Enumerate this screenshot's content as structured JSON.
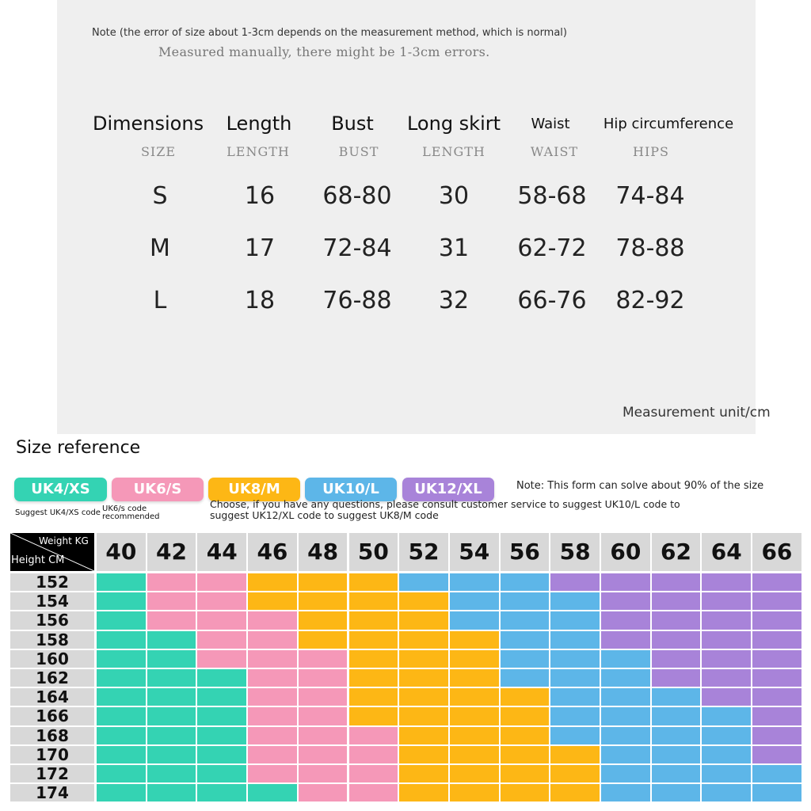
{
  "notes": {
    "error_note": "Note (the error of size about 1-3cm depends on the measurement method, which is normal)",
    "manual_note": "Measured manually, there might be 1-3cm errors.",
    "unit": "Measurement unit/cm"
  },
  "size_table": {
    "columns": [
      {
        "name": "Dimensions",
        "sub": "SIZE"
      },
      {
        "name": "Length",
        "sub": "LENGTH"
      },
      {
        "name": "Bust",
        "sub": "BUST"
      },
      {
        "name": "Long skirt",
        "sub": "LENGTH"
      },
      {
        "name": "Waist",
        "sub": "WAIST"
      },
      {
        "name": "Hip circumference",
        "sub": "HIPS"
      }
    ],
    "rows": [
      [
        "S",
        "16",
        "68-80",
        "30",
        "58-68",
        "74-84"
      ],
      [
        "M",
        "17",
        "72-84",
        "31",
        "62-72",
        "78-88"
      ],
      [
        "L",
        "18",
        "76-88",
        "32",
        "66-76",
        "82-92"
      ]
    ]
  },
  "reference": {
    "title": "Size reference",
    "badges": [
      {
        "label": "UK4/XS",
        "color": "#34d3b3"
      },
      {
        "label": "UK6/S",
        "color": "#f598b8"
      },
      {
        "label": "UK8/M",
        "color": "#fdb715"
      },
      {
        "label": "UK10/L",
        "color": "#5db6e8"
      },
      {
        "label": "UK12/XL",
        "color": "#a883d9"
      }
    ],
    "suggest_xs": "Suggest UK4/XS code",
    "suggest_s_line1": "UK6/s code",
    "suggest_s_line2": "recommended",
    "note_line1": "Note: This form can solve about 90% of the size",
    "note_line2": "Choose, if you have any questions, please consult customer service to suggest UK10/L code to",
    "note_line3": "suggest UK12/XL code to suggest UK8/M code"
  },
  "grid": {
    "corner_weight": "Weight KG",
    "corner_height": "Height CM",
    "weights": [
      "40",
      "42",
      "44",
      "46",
      "48",
      "50",
      "52",
      "54",
      "56",
      "58",
      "60",
      "62",
      "64",
      "66"
    ],
    "heights": [
      "152",
      "154",
      "156",
      "158",
      "160",
      "162",
      "164",
      "166",
      "168",
      "170",
      "172",
      "174"
    ],
    "size_map": [
      [
        0,
        1,
        1,
        2,
        2,
        2,
        3,
        3,
        3,
        4,
        4,
        4,
        4,
        4
      ],
      [
        0,
        1,
        1,
        2,
        2,
        2,
        2,
        3,
        3,
        3,
        4,
        4,
        4,
        4
      ],
      [
        0,
        1,
        1,
        1,
        2,
        2,
        2,
        3,
        3,
        3,
        4,
        4,
        4,
        4
      ],
      [
        0,
        0,
        1,
        1,
        2,
        2,
        2,
        2,
        3,
        3,
        4,
        4,
        4,
        4
      ],
      [
        0,
        0,
        1,
        1,
        1,
        2,
        2,
        2,
        3,
        3,
        3,
        4,
        4,
        4
      ],
      [
        0,
        0,
        0,
        1,
        1,
        2,
        2,
        2,
        3,
        3,
        3,
        4,
        4,
        4
      ],
      [
        0,
        0,
        0,
        1,
        1,
        2,
        2,
        2,
        2,
        3,
        3,
        3,
        4,
        4
      ],
      [
        0,
        0,
        0,
        1,
        1,
        2,
        2,
        2,
        2,
        3,
        3,
        3,
        3,
        4
      ],
      [
        0,
        0,
        0,
        1,
        1,
        1,
        2,
        2,
        2,
        3,
        3,
        3,
        3,
        4
      ],
      [
        0,
        0,
        0,
        1,
        1,
        1,
        2,
        2,
        2,
        2,
        3,
        3,
        3,
        4
      ],
      [
        0,
        0,
        0,
        1,
        1,
        1,
        2,
        2,
        2,
        2,
        3,
        3,
        3,
        3
      ],
      [
        0,
        0,
        0,
        0,
        1,
        1,
        2,
        2,
        2,
        2,
        3,
        3,
        3,
        3
      ]
    ]
  }
}
